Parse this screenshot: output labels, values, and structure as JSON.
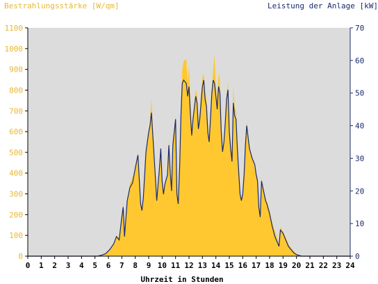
{
  "chart_data": {
    "type": "area",
    "title": "",
    "left_axis_label": "Bestrahlungsstärke [W/qm]",
    "right_axis_label": "Leistung der Anlage [kW]",
    "xlabel": "Uhrzeit in Stunden",
    "xlim": [
      0,
      24
    ],
    "ylim_left": [
      0,
      1100
    ],
    "ylim_right": [
      0,
      70
    ],
    "x_ticks": [
      "0",
      "1",
      "2",
      "3",
      "4",
      "5",
      "6",
      "7",
      "8",
      "9",
      "10",
      "11",
      "12",
      "13",
      "14",
      "15",
      "16",
      "17",
      "18",
      "19",
      "20",
      "21",
      "22",
      "23",
      "24"
    ],
    "y_left_ticks": [
      "0",
      "100",
      "200",
      "300",
      "400",
      "500",
      "600",
      "700",
      "800",
      "900",
      "1000",
      "1100"
    ],
    "y_right_ticks": [
      "0",
      "10",
      "20",
      "30",
      "40",
      "50",
      "60",
      "70"
    ],
    "grid": false,
    "colors": {
      "irradiance_fill": "#ffc830",
      "power_line": "#1a2a6c",
      "plot_background": "#dcdcdc",
      "left_axis_text": "#e8b830",
      "right_axis_text": "#1a2a6c",
      "axis_text": "#000000"
    },
    "series": [
      {
        "axis": "left",
        "style": "area",
        "x": [
          0,
          5.2,
          5.5,
          5.8,
          6.1,
          6.4,
          6.6,
          6.8,
          7.0,
          7.1,
          7.2,
          7.4,
          7.5,
          7.6,
          7.8,
          8.0,
          8.2,
          8.4,
          8.5,
          8.6,
          8.8,
          9.0,
          9.1,
          9.2,
          9.4,
          9.6,
          9.7,
          9.8,
          9.9,
          10.0,
          10.1,
          10.2,
          10.4,
          10.5,
          10.6,
          10.7,
          10.8,
          11.0,
          11.1,
          11.2,
          11.3,
          11.4,
          11.5,
          11.6,
          11.8,
          11.9,
          12.0,
          12.1,
          12.2,
          12.3,
          12.5,
          12.6,
          12.7,
          12.8,
          13.0,
          13.1,
          13.2,
          13.3,
          13.4,
          13.5,
          13.6,
          13.7,
          13.8,
          13.9,
          14.0,
          14.1,
          14.2,
          14.3,
          14.4,
          14.5,
          14.6,
          14.7,
          14.8,
          14.9,
          15.0,
          15.1,
          15.2,
          15.3,
          15.4,
          15.5,
          15.6,
          15.7,
          15.8,
          15.9,
          16.0,
          16.1,
          16.2,
          16.3,
          16.5,
          16.7,
          16.9,
          17.0,
          17.1,
          17.2,
          17.3,
          17.4,
          17.5,
          17.6,
          17.7,
          17.8,
          18.0,
          18.2,
          18.4,
          18.6,
          18.7,
          18.8,
          19.0,
          19.2,
          19.4,
          19.6,
          19.8,
          20.0,
          20.2,
          20.4,
          20.6,
          24
        ],
        "values": [
          0,
          0,
          5,
          15,
          30,
          60,
          100,
          90,
          200,
          260,
          120,
          280,
          300,
          350,
          380,
          420,
          500,
          260,
          230,
          280,
          500,
          610,
          650,
          760,
          500,
          280,
          340,
          420,
          520,
          360,
          300,
          340,
          400,
          560,
          420,
          310,
          560,
          680,
          300,
          250,
          420,
          660,
          900,
          940,
          950,
          830,
          920,
          760,
          600,
          680,
          800,
          780,
          640,
          700,
          860,
          880,
          790,
          760,
          640,
          560,
          700,
          800,
          900,
          970,
          820,
          750,
          880,
          850,
          620,
          520,
          560,
          660,
          780,
          840,
          620,
          540,
          470,
          820,
          720,
          700,
          520,
          430,
          300,
          280,
          300,
          400,
          560,
          650,
          520,
          480,
          420,
          400,
          380,
          250,
          200,
          380,
          340,
          300,
          280,
          260,
          220,
          160,
          120,
          80,
          60,
          140,
          120,
          90,
          60,
          40,
          25,
          10,
          5,
          0,
          0,
          0
        ]
      },
      {
        "axis": "right",
        "style": "line",
        "x": [
          0,
          5.2,
          5.5,
          5.8,
          6.1,
          6.4,
          6.6,
          6.8,
          7.0,
          7.1,
          7.2,
          7.4,
          7.5,
          7.6,
          7.8,
          8.0,
          8.2,
          8.4,
          8.5,
          8.6,
          8.8,
          9.0,
          9.1,
          9.2,
          9.4,
          9.6,
          9.7,
          9.8,
          9.9,
          10.0,
          10.1,
          10.2,
          10.4,
          10.5,
          10.6,
          10.7,
          10.8,
          11.0,
          11.1,
          11.2,
          11.3,
          11.4,
          11.5,
          11.6,
          11.8,
          11.9,
          12.0,
          12.1,
          12.2,
          12.3,
          12.5,
          12.6,
          12.7,
          12.8,
          13.0,
          13.1,
          13.2,
          13.3,
          13.4,
          13.5,
          13.6,
          13.7,
          13.8,
          13.9,
          14.0,
          14.1,
          14.2,
          14.3,
          14.4,
          14.5,
          14.6,
          14.7,
          14.8,
          14.9,
          15.0,
          15.1,
          15.2,
          15.3,
          15.4,
          15.5,
          15.6,
          15.7,
          15.8,
          15.9,
          16.0,
          16.1,
          16.2,
          16.3,
          16.5,
          16.7,
          16.9,
          17.0,
          17.1,
          17.2,
          17.3,
          17.4,
          17.5,
          17.6,
          17.7,
          17.8,
          18.0,
          18.2,
          18.4,
          18.6,
          18.7,
          18.8,
          19.0,
          19.2,
          19.4,
          19.6,
          19.8,
          20.0,
          20.2,
          20.4,
          20.6,
          24
        ],
        "values": [
          0,
          0,
          0.3,
          0.8,
          2,
          3.8,
          6,
          5,
          12,
          15,
          6,
          17,
          19,
          21,
          22.5,
          27,
          31,
          16,
          14,
          18,
          32,
          38,
          40,
          44,
          31,
          17,
          22,
          27,
          33,
          23,
          19,
          22,
          25,
          34,
          26,
          20,
          34,
          42,
          19,
          16,
          27,
          43,
          53,
          54,
          53,
          49,
          52,
          44,
          37,
          42,
          49,
          47,
          39,
          42,
          52,
          54,
          48,
          46,
          38,
          35,
          42,
          50,
          54,
          53,
          49,
          45,
          52,
          50,
          38,
          32,
          35,
          41,
          48,
          51,
          38,
          33,
          29,
          47,
          43,
          42,
          33,
          26,
          19,
          17,
          19,
          25,
          34,
          40,
          33,
          30,
          28,
          25,
          23,
          15,
          12,
          23,
          21,
          19,
          17,
          16,
          13,
          9,
          6,
          4,
          3,
          8,
          7,
          5,
          3,
          2,
          1,
          0.5,
          0.2,
          0,
          0,
          0
        ]
      }
    ]
  }
}
